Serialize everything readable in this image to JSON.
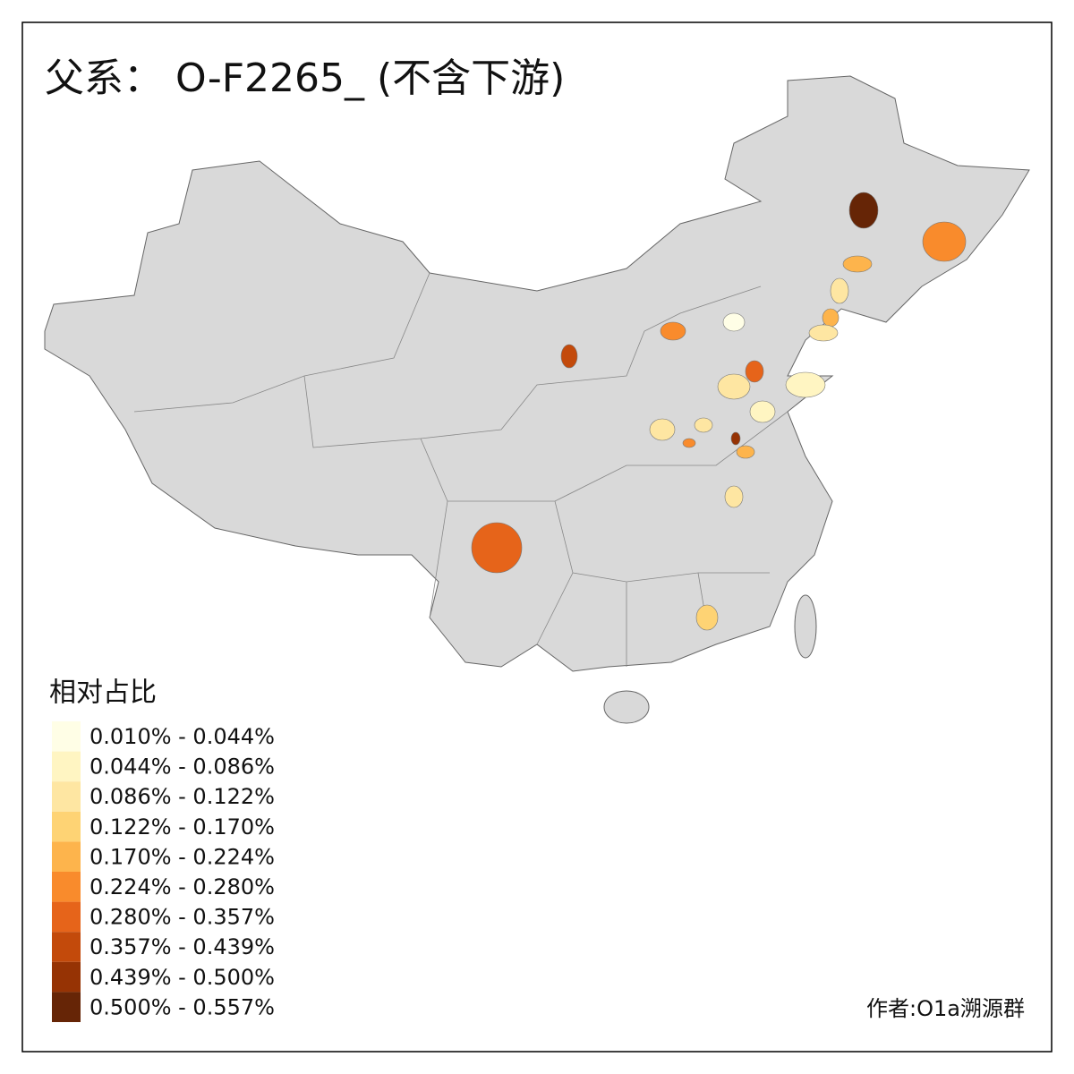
{
  "title": "父系： O-F2265_ (不含下游)",
  "legend": {
    "title": "相对占比",
    "items": [
      {
        "label": "0.010% - 0.044%",
        "color": "#fffee6"
      },
      {
        "label": "0.044% - 0.086%",
        "color": "#fff5c2"
      },
      {
        "label": "0.086% - 0.122%",
        "color": "#fee6a2"
      },
      {
        "label": "0.122% - 0.170%",
        "color": "#fed374"
      },
      {
        "label": "0.170% - 0.224%",
        "color": "#fdb44c"
      },
      {
        "label": "0.224% - 0.280%",
        "color": "#f98b2c"
      },
      {
        "label": "0.280% - 0.357%",
        "color": "#e6641a"
      },
      {
        "label": "0.357% - 0.439%",
        "color": "#c34a0b"
      },
      {
        "label": "0.439% - 0.500%",
        "color": "#963304"
      },
      {
        "label": "0.500% - 0.557%",
        "color": "#662506"
      }
    ]
  },
  "author": "作者:O1a溯源群"
}
